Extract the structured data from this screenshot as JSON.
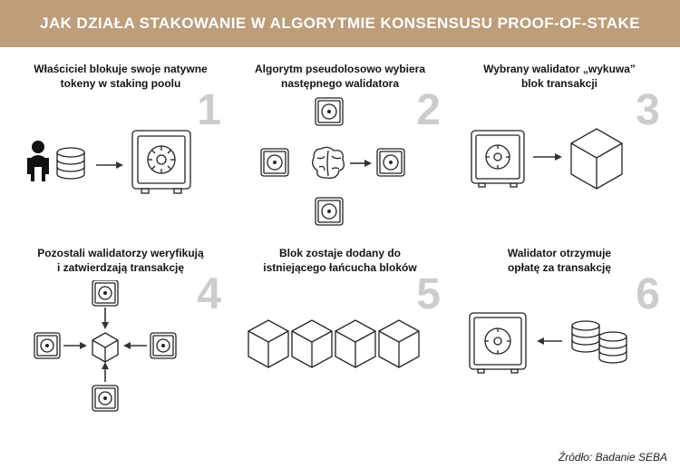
{
  "header_title": "JAK DZIAŁA STAKOWANIE W ALGORYTMIE KONSENSUSU PROOF-OF-STAKE",
  "header_bg": "#be9d7a",
  "header_text_color": "#ffffff",
  "stepnum_color": "#cccccc",
  "icon_stroke": "#222222",
  "source_text": "Źródło: Badanie SEBA",
  "steps": [
    {
      "num": "1",
      "label": "Właściciel blokuje swoje natywne\ntokeny w staking poolu"
    },
    {
      "num": "2",
      "label": "Algorytm pseudolosowo wybiera\nnastępnego walidatora"
    },
    {
      "num": "3",
      "label": "Wybrany walidator „wykuwa”\nblok transakcji"
    },
    {
      "num": "4",
      "label": "Pozostali walidatorzy weryfikują\ni zatwierdzają transakcję"
    },
    {
      "num": "5",
      "label": "Blok zostaje dodany do\nistniejącego łańcucha bloków"
    },
    {
      "num": "6",
      "label": "Walidator otrzymuje\nopłatę za transakcję"
    }
  ]
}
